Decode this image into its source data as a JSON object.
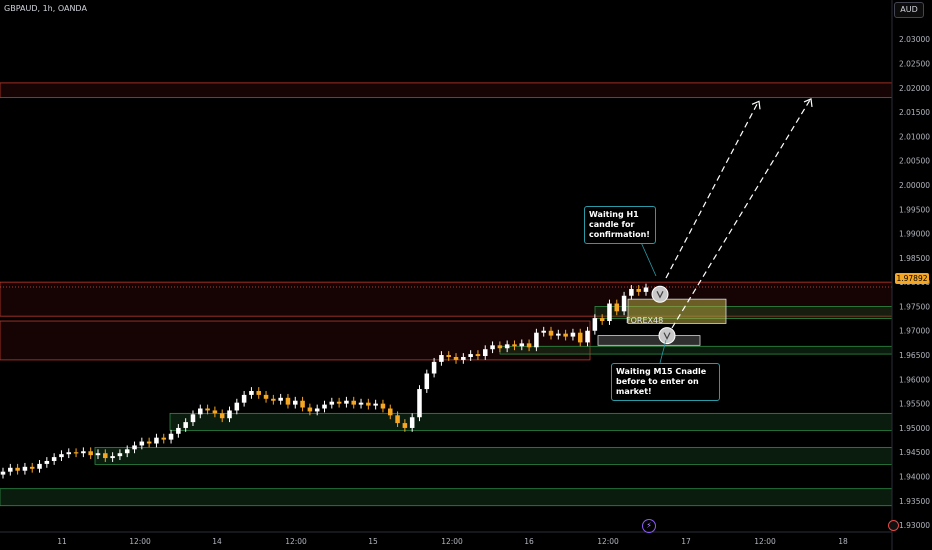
{
  "header": {
    "title": "GBPAUD, 1h, OANDA",
    "currency": "AUD"
  },
  "annotations": {
    "callout_top": "Waiting H1 candle for confirmation!",
    "callout_bottom": "Waiting M15 Cnadle before to enter on market!",
    "brand": "FOREX48",
    "current_price": "1.97892"
  },
  "colors": {
    "bull_candle": "#ffffff",
    "bear_candle": "#f5a623",
    "resistance_zone": "#7a1515",
    "support_zone": "#1d5c2a",
    "callout_border": "#2a9aa6",
    "price_tag": "#f5a623"
  },
  "icons": [
    "bolt-icon",
    "tradingview-logo-icon"
  ],
  "chart_data": {
    "type": "candlestick",
    "symbol": "GBPAUD",
    "timeframe": "1h",
    "ylim": [
      1.929,
      2.036
    ],
    "y_ticks": [
      "2.03000",
      "2.02500",
      "2.02000",
      "2.01500",
      "2.01000",
      "2.00500",
      "2.00000",
      "1.99500",
      "1.99000",
      "1.98500",
      "1.98000",
      "1.97500",
      "1.97000",
      "1.96500",
      "1.96000",
      "1.95500",
      "1.95000",
      "1.94500",
      "1.94000",
      "1.93500",
      "1.93000"
    ],
    "x_ticks": [
      "11",
      "12:00",
      "14",
      "12:00",
      "15",
      "12:00",
      "16",
      "12:00",
      "17",
      "12:00",
      "18"
    ],
    "close_series": [
      1.941,
      1.9418,
      1.9412,
      1.942,
      1.9416,
      1.9426,
      1.9432,
      1.944,
      1.9446,
      1.945,
      1.9448,
      1.9452,
      1.9444,
      1.9448,
      1.9438,
      1.9442,
      1.9448,
      1.9456,
      1.9464,
      1.9472,
      1.9468,
      1.948,
      1.9476,
      1.9488,
      1.95,
      1.9512,
      1.9528,
      1.954,
      1.9536,
      1.953,
      1.952,
      1.9536,
      1.9552,
      1.9568,
      1.9576,
      1.9568,
      1.956,
      1.9556,
      1.9562,
      1.9548,
      1.9556,
      1.9542,
      1.9534,
      1.954,
      1.9548,
      1.9554,
      1.955,
      1.9556,
      1.9548,
      1.9552,
      1.9546,
      1.955,
      1.954,
      1.9526,
      1.951,
      1.95,
      1.9522,
      1.958,
      1.9612,
      1.9636,
      1.965,
      1.9646,
      1.964,
      1.9646,
      1.9652,
      1.9648,
      1.9662,
      1.967,
      1.9664,
      1.9672,
      1.9668,
      1.9674,
      1.9666,
      1.9696,
      1.97,
      1.969,
      1.9694,
      1.9688,
      1.9696,
      1.9676,
      1.97,
      1.9726,
      1.972,
      1.9756,
      1.974,
      1.9772,
      1.9786,
      1.978,
      1.9789
    ],
    "resistance_zones": [
      [
        2.018,
        2.021
      ],
      [
        1.973,
        1.98
      ],
      [
        1.964,
        1.972
      ]
    ],
    "support_zones": [
      [
        1.9495,
        1.953
      ],
      [
        1.9425,
        1.946
      ],
      [
        1.934,
        1.9375
      ],
      [
        1.9725,
        1.975
      ],
      [
        1.9652,
        1.9668
      ]
    ],
    "entry_box": [
      1.9715,
      1.9765
    ],
    "entry_box_low": [
      1.967,
      1.969
    ],
    "current_price": 1.97892,
    "projected_targets": [
      2.017,
      2.0175
    ]
  }
}
